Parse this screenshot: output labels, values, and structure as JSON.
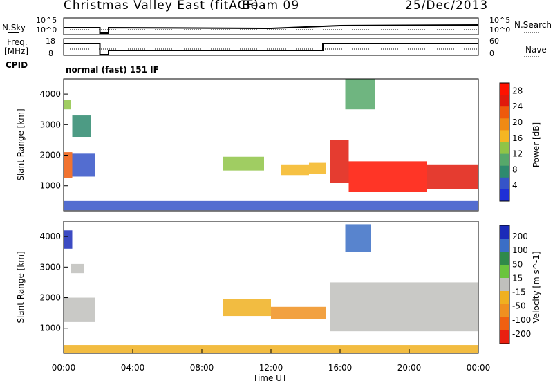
{
  "header": {
    "station": "Christmas Valley East (fitACF)",
    "beam": "Beam 09",
    "date": "25/Dec/2013"
  },
  "left_labels": {
    "nsky": "N.Sky",
    "freq": "Freq.",
    "freq_unit": "[MHz]",
    "cpid": "CPID"
  },
  "right_labels": {
    "nsearch": "N.Search",
    "nave": "Nave"
  },
  "noise_axis": {
    "left_ticks": [
      "10^5",
      "10^0"
    ],
    "right_ticks": [
      "10^5",
      "10^0"
    ]
  },
  "freq_axis": {
    "left_ticks": [
      "18",
      "8"
    ],
    "right_ticks": [
      "60",
      "0"
    ]
  },
  "cpid_text": "normal (fast) 151 IF",
  "x_axis": {
    "label": "Time UT",
    "ticks": [
      "00:00",
      "04:00",
      "08:00",
      "12:00",
      "16:00",
      "20:00",
      "00:00"
    ]
  },
  "y_axis": {
    "label": "Slant Range [km]",
    "ticks": [
      "4000",
      "3000",
      "2000",
      "1000"
    ]
  },
  "colors": {
    "power_scale": [
      "#1e2fd6",
      "#3554c8",
      "#2e8a6e",
      "#56a86a",
      "#8fc447",
      "#f5b622",
      "#f08a14",
      "#ef5a0c",
      "#e11a0c",
      "#ff1200"
    ],
    "velocity_scale": [
      "#1a2bb8",
      "#3b6ec6",
      "#2f8a4a",
      "#6ac43d",
      "#c0c0bc",
      "#f0b020",
      "#f09020",
      "#f06010",
      "#e82010"
    ]
  },
  "chart_data": [
    {
      "type": "heatmap",
      "title": "Power",
      "xlabel": "Time UT",
      "ylabel": "Slant Range [km]",
      "xlim": [
        0,
        24
      ],
      "ylim": [
        180,
        4500
      ],
      "colorbar": {
        "label": "Power [dB]",
        "ticks": [
          4,
          8,
          12,
          16,
          20,
          24,
          28
        ]
      },
      "echo_regions": [
        {
          "t": [
            0.0,
            0.5
          ],
          "range": [
            1250,
            2100
          ],
          "value": 22
        },
        {
          "t": [
            0.0,
            0.4
          ],
          "range": [
            3500,
            3800
          ],
          "value": 14
        },
        {
          "t": [
            0.5,
            1.8
          ],
          "range": [
            1300,
            2050
          ],
          "value": 6
        },
        {
          "t": [
            0.5,
            1.6
          ],
          "range": [
            2600,
            3300
          ],
          "value": 8
        },
        {
          "t": [
            9.2,
            11.6
          ],
          "range": [
            1500,
            1950
          ],
          "value": 14
        },
        {
          "t": [
            12.6,
            14.2
          ],
          "range": [
            1350,
            1700
          ],
          "value": 16
        },
        {
          "t": [
            14.2,
            15.2
          ],
          "range": [
            1400,
            1750
          ],
          "value": 18
        },
        {
          "t": [
            15.4,
            16.5
          ],
          "range": [
            1100,
            2500
          ],
          "value": 24
        },
        {
          "t": [
            16.5,
            21.0
          ],
          "range": [
            800,
            1800
          ],
          "value": 28
        },
        {
          "t": [
            21.0,
            24.0
          ],
          "range": [
            900,
            1700
          ],
          "value": 26
        },
        {
          "t": [
            16.3,
            18.0
          ],
          "range": [
            3500,
            4500
          ],
          "value": 12
        },
        {
          "t": [
            0.0,
            24.0
          ],
          "range": [
            200,
            500
          ],
          "value": 6
        }
      ]
    },
    {
      "type": "heatmap",
      "title": "Velocity",
      "xlabel": "Time UT",
      "ylabel": "Slant Range [km]",
      "xlim": [
        0,
        24
      ],
      "ylim": [
        180,
        4500
      ],
      "colorbar": {
        "label": "Velocity [m s^-1]",
        "ticks": [
          200,
          100,
          50,
          15,
          -15,
          -50,
          -100,
          -200
        ]
      },
      "echo_regions": [
        {
          "t": [
            0.0,
            0.5
          ],
          "range": [
            3600,
            4200
          ],
          "value": 200
        },
        {
          "t": [
            0.0,
            1.8
          ],
          "range": [
            1200,
            2000
          ],
          "value": 0
        },
        {
          "t": [
            0.4,
            1.2
          ],
          "range": [
            2800,
            3100
          ],
          "value": 0
        },
        {
          "t": [
            9.2,
            12.0
          ],
          "range": [
            1400,
            1950
          ],
          "value": -60
        },
        {
          "t": [
            12.0,
            15.2
          ],
          "range": [
            1300,
            1700
          ],
          "value": -80
        },
        {
          "t": [
            15.4,
            24.0
          ],
          "range": [
            900,
            2500
          ],
          "value": 0
        },
        {
          "t": [
            16.3,
            17.8
          ],
          "range": [
            3500,
            4400
          ],
          "value": 150
        },
        {
          "t": [
            0.0,
            24.0
          ],
          "range": [
            200,
            450
          ],
          "value": -30
        }
      ]
    }
  ]
}
